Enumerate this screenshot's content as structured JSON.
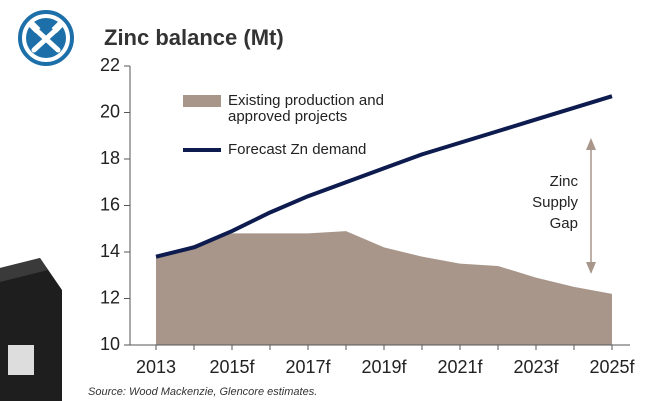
{
  "chart_data": {
    "type": "area-line",
    "title": "Zinc balance (Mt)",
    "categories": [
      "2013",
      null,
      "2015f",
      null,
      "2017f",
      null,
      "2019f",
      null,
      "2021f",
      null,
      "2023f",
      null,
      "2025f"
    ],
    "series": [
      {
        "name": "Existing production and approved projects",
        "kind": "area",
        "color": "#a8968a",
        "values": [
          13.8,
          14.3,
          14.8,
          14.8,
          14.8,
          14.9,
          14.2,
          13.8,
          13.5,
          13.4,
          12.9,
          12.5,
          12.2
        ]
      },
      {
        "name": "Forecast Zn demand",
        "kind": "line",
        "color": "#0d1b4f",
        "values": [
          13.8,
          14.2,
          14.9,
          15.7,
          16.4,
          17.0,
          17.6,
          18.2,
          18.7,
          19.2,
          19.7,
          20.2,
          20.7
        ]
      }
    ],
    "ylim": [
      10,
      22
    ],
    "yticks": [
      10,
      12,
      14,
      16,
      18,
      20,
      22
    ],
    "annotation": [
      "Zinc",
      "Supply",
      "Gap"
    ],
    "source": "Source: Wood Mackenzie, Glencore estimates."
  }
}
